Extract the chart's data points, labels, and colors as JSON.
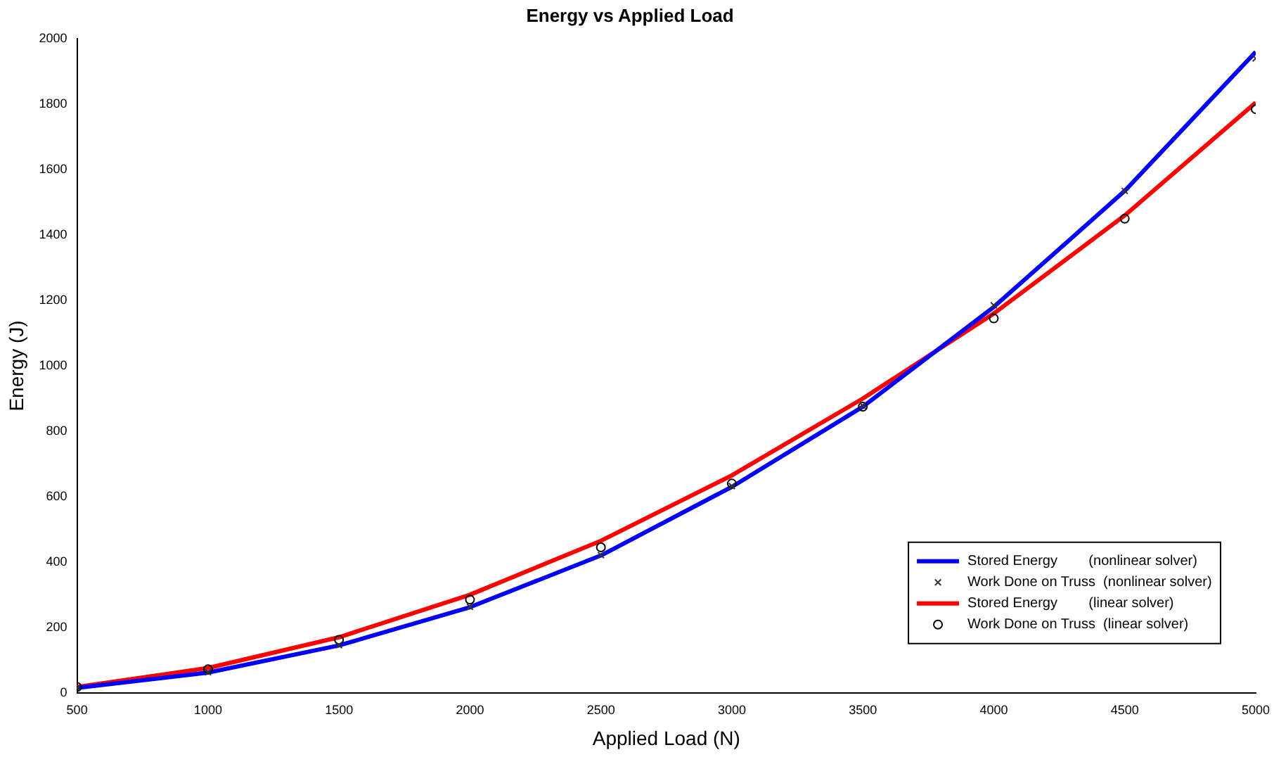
{
  "chart_data": {
    "type": "line",
    "title": "Energy vs Applied Load",
    "xlabel": "Applied Load (N)",
    "ylabel": "Energy (J)",
    "x": [
      500,
      1000,
      1500,
      2000,
      2500,
      3000,
      3500,
      4000,
      4500,
      5000
    ],
    "series": [
      {
        "name": "Stored Energy        (nonlinear solver)",
        "type": "line",
        "color": "#0000ff",
        "values": [
          15,
          62,
          145,
          262,
          420,
          630,
          875,
          1180,
          1535,
          1960
        ]
      },
      {
        "name": "Work Done on Truss  (nonlinear solver)",
        "type": "scatter",
        "marker": "cross",
        "color": "#333333",
        "values": [
          15,
          63,
          146,
          263,
          421,
          632,
          878,
          1185,
          1535,
          1940
        ]
      },
      {
        "name": "Stored Energy        (linear solver)",
        "type": "line",
        "color": "#ff0000",
        "values": [
          18,
          76,
          170,
          300,
          465,
          665,
          900,
          1160,
          1460,
          1805
        ]
      },
      {
        "name": "Work Done on Truss  (linear solver)",
        "type": "scatter",
        "marker": "circle",
        "color": "#000000",
        "values": [
          18,
          72,
          162,
          285,
          445,
          640,
          875,
          1145,
          1450,
          1785
        ]
      }
    ],
    "xlim": [
      500,
      5000
    ],
    "xticks": [
      500,
      1000,
      1500,
      2000,
      2500,
      3000,
      3500,
      4000,
      4500,
      5000
    ],
    "ylim": [
      0,
      2000
    ],
    "yticks": [
      0,
      200,
      400,
      600,
      800,
      1000,
      1200,
      1400,
      1600,
      1800,
      2000
    ],
    "grid": false,
    "legend": "bottom right"
  }
}
